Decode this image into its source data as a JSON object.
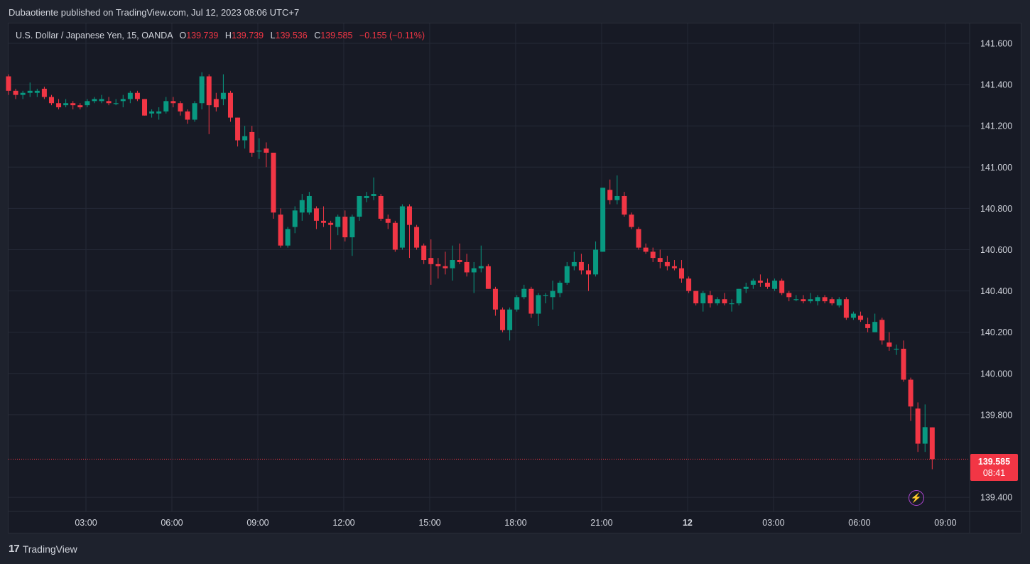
{
  "header": {
    "publish_line": "Dubaotiente published on TradingView.com, Jul 12, 2023 08:06 UTC+7"
  },
  "legend": {
    "symbol": "U.S. Dollar / Japanese Yen, 15, OANDA",
    "open_label": "O",
    "open": "139.739",
    "high_label": "H",
    "high": "139.739",
    "low_label": "L",
    "low": "139.536",
    "close_label": "C",
    "close": "139.585",
    "change": "−0.155 (−0.11%)"
  },
  "price_tag": {
    "price": "139.585",
    "countdown": "08:41"
  },
  "footer": {
    "brand": "TradingView",
    "logo": "17"
  },
  "colors": {
    "up": "#089981",
    "down": "#f23645",
    "background": "#171a25",
    "grid": "#252936",
    "text": "#d1d4dc",
    "accent": "#b045d6"
  },
  "chart_data": {
    "type": "candlestick",
    "title": "U.S. Dollar / Japanese Yen, 15, OANDA",
    "x_ticks": [
      {
        "hour": 3,
        "label": "03:00",
        "bold": false
      },
      {
        "hour": 6,
        "label": "06:00",
        "bold": false
      },
      {
        "hour": 9,
        "label": "09:00",
        "bold": false
      },
      {
        "hour": 12,
        "label": "12:00",
        "bold": false
      },
      {
        "hour": 15,
        "label": "15:00",
        "bold": false
      },
      {
        "hour": 18,
        "label": "18:00",
        "bold": false
      },
      {
        "hour": 21,
        "label": "21:00",
        "bold": false
      },
      {
        "hour": 24,
        "label": "12",
        "bold": true
      },
      {
        "hour": 27,
        "label": "03:00",
        "bold": false
      },
      {
        "hour": 30,
        "label": "06:00",
        "bold": false
      },
      {
        "hour": 33,
        "label": "09:00",
        "bold": false
      }
    ],
    "y_ticks": [
      "141.600",
      "141.400",
      "141.200",
      "141.000",
      "140.800",
      "140.600",
      "140.400",
      "140.200",
      "140.000",
      "139.800",
      "139.400"
    ],
    "ylim": [
      139.38,
      141.68
    ],
    "last_price": 139.585,
    "candles": [
      {
        "o": 141.44,
        "h": 141.45,
        "l": 141.35,
        "c": 141.37
      },
      {
        "o": 141.37,
        "h": 141.38,
        "l": 141.33,
        "c": 141.35
      },
      {
        "o": 141.35,
        "h": 141.37,
        "l": 141.33,
        "c": 141.36
      },
      {
        "o": 141.36,
        "h": 141.41,
        "l": 141.34,
        "c": 141.37
      },
      {
        "o": 141.36,
        "h": 141.38,
        "l": 141.34,
        "c": 141.37
      },
      {
        "o": 141.38,
        "h": 141.39,
        "l": 141.33,
        "c": 141.34
      },
      {
        "o": 141.34,
        "h": 141.35,
        "l": 141.3,
        "c": 141.31
      },
      {
        "o": 141.31,
        "h": 141.33,
        "l": 141.28,
        "c": 141.29
      },
      {
        "o": 141.3,
        "h": 141.33,
        "l": 141.29,
        "c": 141.31
      },
      {
        "o": 141.31,
        "h": 141.32,
        "l": 141.28,
        "c": 141.3
      },
      {
        "o": 141.3,
        "h": 141.31,
        "l": 141.28,
        "c": 141.29
      },
      {
        "o": 141.3,
        "h": 141.33,
        "l": 141.29,
        "c": 141.32
      },
      {
        "o": 141.32,
        "h": 141.34,
        "l": 141.31,
        "c": 141.33
      },
      {
        "o": 141.32,
        "h": 141.35,
        "l": 141.31,
        "c": 141.33
      },
      {
        "o": 141.32,
        "h": 141.34,
        "l": 141.3,
        "c": 141.31
      },
      {
        "o": 141.31,
        "h": 141.33,
        "l": 141.3,
        "c": 141.31
      },
      {
        "o": 141.32,
        "h": 141.35,
        "l": 141.29,
        "c": 141.33
      },
      {
        "o": 141.33,
        "h": 141.37,
        "l": 141.31,
        "c": 141.36
      },
      {
        "o": 141.36,
        "h": 141.37,
        "l": 141.32,
        "c": 141.33
      },
      {
        "o": 141.33,
        "h": 141.33,
        "l": 141.25,
        "c": 141.25
      },
      {
        "o": 141.26,
        "h": 141.28,
        "l": 141.24,
        "c": 141.27
      },
      {
        "o": 141.26,
        "h": 141.29,
        "l": 141.23,
        "c": 141.27
      },
      {
        "o": 141.27,
        "h": 141.34,
        "l": 141.26,
        "c": 141.32
      },
      {
        "o": 141.32,
        "h": 141.34,
        "l": 141.29,
        "c": 141.31
      },
      {
        "o": 141.31,
        "h": 141.32,
        "l": 141.25,
        "c": 141.27
      },
      {
        "o": 141.27,
        "h": 141.28,
        "l": 141.21,
        "c": 141.23
      },
      {
        "o": 141.23,
        "h": 141.32,
        "l": 141.22,
        "c": 141.31
      },
      {
        "o": 141.31,
        "h": 141.46,
        "l": 141.28,
        "c": 141.44
      },
      {
        "o": 141.44,
        "h": 141.45,
        "l": 141.16,
        "c": 141.3
      },
      {
        "o": 141.33,
        "h": 141.36,
        "l": 141.27,
        "c": 141.29
      },
      {
        "o": 141.33,
        "h": 141.45,
        "l": 141.3,
        "c": 141.36
      },
      {
        "o": 141.36,
        "h": 141.37,
        "l": 141.22,
        "c": 141.24
      },
      {
        "o": 141.24,
        "h": 141.24,
        "l": 141.1,
        "c": 141.13
      },
      {
        "o": 141.13,
        "h": 141.2,
        "l": 141.09,
        "c": 141.15
      },
      {
        "o": 141.17,
        "h": 141.2,
        "l": 141.05,
        "c": 141.07
      },
      {
        "o": 141.08,
        "h": 141.14,
        "l": 141.04,
        "c": 141.08
      },
      {
        "o": 141.09,
        "h": 141.12,
        "l": 141.0,
        "c": 141.07
      },
      {
        "o": 141.07,
        "h": 141.07,
        "l": 140.75,
        "c": 140.78
      },
      {
        "o": 140.77,
        "h": 140.8,
        "l": 140.61,
        "c": 140.62
      },
      {
        "o": 140.62,
        "h": 140.71,
        "l": 140.61,
        "c": 140.7
      },
      {
        "o": 140.71,
        "h": 140.81,
        "l": 140.68,
        "c": 140.79
      },
      {
        "o": 140.78,
        "h": 140.87,
        "l": 140.74,
        "c": 140.84
      },
      {
        "o": 140.78,
        "h": 140.88,
        "l": 140.77,
        "c": 140.86
      },
      {
        "o": 140.8,
        "h": 140.81,
        "l": 140.7,
        "c": 140.74
      },
      {
        "o": 140.74,
        "h": 140.81,
        "l": 140.71,
        "c": 140.73
      },
      {
        "o": 140.73,
        "h": 140.74,
        "l": 140.6,
        "c": 140.72
      },
      {
        "o": 140.71,
        "h": 140.77,
        "l": 140.67,
        "c": 140.76
      },
      {
        "o": 140.76,
        "h": 140.79,
        "l": 140.64,
        "c": 140.66
      },
      {
        "o": 140.66,
        "h": 140.77,
        "l": 140.57,
        "c": 140.76
      },
      {
        "o": 140.76,
        "h": 140.86,
        "l": 140.74,
        "c": 140.86
      },
      {
        "o": 140.85,
        "h": 140.88,
        "l": 140.83,
        "c": 140.86
      },
      {
        "o": 140.86,
        "h": 140.95,
        "l": 140.84,
        "c": 140.87
      },
      {
        "o": 140.86,
        "h": 140.87,
        "l": 140.74,
        "c": 140.75
      },
      {
        "o": 140.75,
        "h": 140.77,
        "l": 140.7,
        "c": 140.73
      },
      {
        "o": 140.73,
        "h": 140.74,
        "l": 140.59,
        "c": 140.6
      },
      {
        "o": 140.61,
        "h": 140.82,
        "l": 140.6,
        "c": 140.81
      },
      {
        "o": 140.81,
        "h": 140.82,
        "l": 140.56,
        "c": 140.72
      },
      {
        "o": 140.71,
        "h": 140.72,
        "l": 140.6,
        "c": 140.61
      },
      {
        "o": 140.62,
        "h": 140.63,
        "l": 140.53,
        "c": 140.55
      },
      {
        "o": 140.56,
        "h": 140.65,
        "l": 140.43,
        "c": 140.53
      },
      {
        "o": 140.53,
        "h": 140.56,
        "l": 140.46,
        "c": 140.52
      },
      {
        "o": 140.52,
        "h": 140.59,
        "l": 140.48,
        "c": 140.51
      },
      {
        "o": 140.51,
        "h": 140.62,
        "l": 140.45,
        "c": 140.55
      },
      {
        "o": 140.55,
        "h": 140.63,
        "l": 140.53,
        "c": 140.54
      },
      {
        "o": 140.54,
        "h": 140.58,
        "l": 140.47,
        "c": 140.49
      },
      {
        "o": 140.49,
        "h": 140.54,
        "l": 140.39,
        "c": 140.51
      },
      {
        "o": 140.51,
        "h": 140.62,
        "l": 140.49,
        "c": 140.52
      },
      {
        "o": 140.52,
        "h": 140.53,
        "l": 140.41,
        "c": 140.41
      },
      {
        "o": 140.41,
        "h": 140.42,
        "l": 140.28,
        "c": 140.31
      },
      {
        "o": 140.31,
        "h": 140.32,
        "l": 140.2,
        "c": 140.21
      },
      {
        "o": 140.21,
        "h": 140.32,
        "l": 140.16,
        "c": 140.31
      },
      {
        "o": 140.31,
        "h": 140.38,
        "l": 140.3,
        "c": 140.37
      },
      {
        "o": 140.37,
        "h": 140.43,
        "l": 140.36,
        "c": 140.41
      },
      {
        "o": 140.41,
        "h": 140.42,
        "l": 140.27,
        "c": 140.29
      },
      {
        "o": 140.29,
        "h": 140.39,
        "l": 140.23,
        "c": 140.38
      },
      {
        "o": 140.38,
        "h": 140.39,
        "l": 140.34,
        "c": 140.38
      },
      {
        "o": 140.37,
        "h": 140.45,
        "l": 140.31,
        "c": 140.4
      },
      {
        "o": 140.39,
        "h": 140.45,
        "l": 140.37,
        "c": 140.44
      },
      {
        "o": 140.44,
        "h": 140.54,
        "l": 140.43,
        "c": 140.52
      },
      {
        "o": 140.52,
        "h": 140.59,
        "l": 140.5,
        "c": 140.54
      },
      {
        "o": 140.54,
        "h": 140.58,
        "l": 140.48,
        "c": 140.5
      },
      {
        "o": 140.5,
        "h": 140.53,
        "l": 140.4,
        "c": 140.48
      },
      {
        "o": 140.48,
        "h": 140.64,
        "l": 140.47,
        "c": 140.6
      },
      {
        "o": 140.59,
        "h": 140.9,
        "l": 140.59,
        "c": 140.9
      },
      {
        "o": 140.89,
        "h": 140.94,
        "l": 140.82,
        "c": 140.84
      },
      {
        "o": 140.84,
        "h": 140.96,
        "l": 140.82,
        "c": 140.86
      },
      {
        "o": 140.86,
        "h": 140.88,
        "l": 140.76,
        "c": 140.77
      },
      {
        "o": 140.77,
        "h": 140.78,
        "l": 140.7,
        "c": 140.71
      },
      {
        "o": 140.7,
        "h": 140.71,
        "l": 140.6,
        "c": 140.61
      },
      {
        "o": 140.61,
        "h": 140.63,
        "l": 140.58,
        "c": 140.59
      },
      {
        "o": 140.59,
        "h": 140.61,
        "l": 140.54,
        "c": 140.56
      },
      {
        "o": 140.56,
        "h": 140.6,
        "l": 140.51,
        "c": 140.54
      },
      {
        "o": 140.54,
        "h": 140.57,
        "l": 140.5,
        "c": 140.52
      },
      {
        "o": 140.52,
        "h": 140.55,
        "l": 140.5,
        "c": 140.51
      },
      {
        "o": 140.51,
        "h": 140.55,
        "l": 140.44,
        "c": 140.46
      },
      {
        "o": 140.46,
        "h": 140.47,
        "l": 140.39,
        "c": 140.4
      },
      {
        "o": 140.4,
        "h": 140.4,
        "l": 140.33,
        "c": 140.34
      },
      {
        "o": 140.34,
        "h": 140.4,
        "l": 140.3,
        "c": 140.39
      },
      {
        "o": 140.38,
        "h": 140.4,
        "l": 140.32,
        "c": 140.34
      },
      {
        "o": 140.34,
        "h": 140.37,
        "l": 140.33,
        "c": 140.36
      },
      {
        "o": 140.36,
        "h": 140.39,
        "l": 140.33,
        "c": 140.34
      },
      {
        "o": 140.34,
        "h": 140.36,
        "l": 140.3,
        "c": 140.34
      },
      {
        "o": 140.34,
        "h": 140.41,
        "l": 140.33,
        "c": 140.41
      },
      {
        "o": 140.41,
        "h": 140.44,
        "l": 140.39,
        "c": 140.42
      },
      {
        "o": 140.43,
        "h": 140.46,
        "l": 140.41,
        "c": 140.45
      },
      {
        "o": 140.45,
        "h": 140.48,
        "l": 140.42,
        "c": 140.44
      },
      {
        "o": 140.44,
        "h": 140.46,
        "l": 140.41,
        "c": 140.42
      },
      {
        "o": 140.41,
        "h": 140.46,
        "l": 140.4,
        "c": 140.45
      },
      {
        "o": 140.45,
        "h": 140.46,
        "l": 140.38,
        "c": 140.39
      },
      {
        "o": 140.39,
        "h": 140.4,
        "l": 140.35,
        "c": 140.37
      },
      {
        "o": 140.36,
        "h": 140.38,
        "l": 140.35,
        "c": 140.36
      },
      {
        "o": 140.36,
        "h": 140.38,
        "l": 140.34,
        "c": 140.35
      },
      {
        "o": 140.35,
        "h": 140.39,
        "l": 140.34,
        "c": 140.36
      },
      {
        "o": 140.35,
        "h": 140.38,
        "l": 140.33,
        "c": 140.37
      },
      {
        "o": 140.37,
        "h": 140.38,
        "l": 140.34,
        "c": 140.35
      },
      {
        "o": 140.36,
        "h": 140.37,
        "l": 140.33,
        "c": 140.34
      },
      {
        "o": 140.33,
        "h": 140.37,
        "l": 140.32,
        "c": 140.36
      },
      {
        "o": 140.36,
        "h": 140.37,
        "l": 140.26,
        "c": 140.27
      },
      {
        "o": 140.27,
        "h": 140.3,
        "l": 140.26,
        "c": 140.29
      },
      {
        "o": 140.28,
        "h": 140.3,
        "l": 140.25,
        "c": 140.26
      },
      {
        "o": 140.24,
        "h": 140.27,
        "l": 140.2,
        "c": 140.22
      },
      {
        "o": 140.2,
        "h": 140.29,
        "l": 140.2,
        "c": 140.25
      },
      {
        "o": 140.26,
        "h": 140.27,
        "l": 140.14,
        "c": 140.16
      },
      {
        "o": 140.15,
        "h": 140.2,
        "l": 140.11,
        "c": 140.13
      },
      {
        "o": 140.12,
        "h": 140.14,
        "l": 140.09,
        "c": 140.12
      },
      {
        "o": 140.12,
        "h": 140.16,
        "l": 139.96,
        "c": 139.97
      },
      {
        "o": 139.97,
        "h": 139.98,
        "l": 139.77,
        "c": 139.84
      },
      {
        "o": 139.83,
        "h": 139.86,
        "l": 139.62,
        "c": 139.66
      },
      {
        "o": 139.66,
        "h": 139.85,
        "l": 139.62,
        "c": 139.74
      },
      {
        "o": 139.739,
        "h": 139.739,
        "l": 139.536,
        "c": 139.585
      }
    ]
  }
}
